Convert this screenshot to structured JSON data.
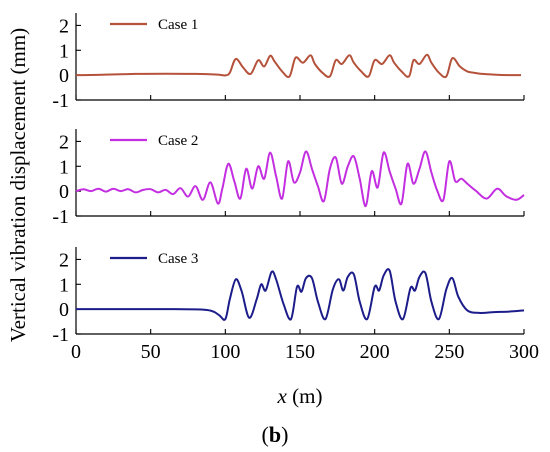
{
  "figure_label": "(b)",
  "figure_label_parts": {
    "open": "(",
    "letter": "b",
    "close": ")"
  },
  "chart_data": {
    "type": "line",
    "ylabel": "Vertical vibration displacement (mm)",
    "xlabel": "x (m)",
    "xlabel_parts": {
      "var": "x",
      "unit": " (m)"
    },
    "xlim": [
      0,
      300
    ],
    "xticks": [
      0,
      50,
      100,
      150,
      200,
      250,
      300
    ],
    "ylim": [
      -1,
      2.5
    ],
    "yticks": [
      -1,
      0,
      1,
      2
    ],
    "grid": false,
    "panels": [
      {
        "series": [
          {
            "name": "Case 1",
            "color": "#b5523b",
            "x": [
              0,
              20,
              40,
              60,
              80,
              95,
              100,
              103,
              107,
              112,
              117,
              122,
              126,
              130,
              133,
              138,
              143,
              147,
              152,
              157,
              160,
              165,
              170,
              174,
              178,
              183,
              186,
              191,
              196,
              200,
              205,
              210,
              213,
              218,
              223,
              226,
              230,
              235,
              238,
              243,
              248,
              252,
              257,
              262,
              266,
              272,
              280,
              290,
              298
            ],
            "y": [
              0.0,
              0.02,
              0.05,
              0.06,
              0.05,
              0.02,
              -0.01,
              0.1,
              0.65,
              0.3,
              0.05,
              0.6,
              0.35,
              0.78,
              0.55,
              0.15,
              -0.05,
              0.7,
              0.5,
              0.8,
              0.45,
              0.1,
              -0.05,
              0.6,
              0.45,
              0.8,
              0.5,
              0.15,
              -0.05,
              0.6,
              0.45,
              0.8,
              0.5,
              0.15,
              -0.05,
              0.6,
              0.45,
              0.82,
              0.5,
              0.1,
              -0.05,
              0.68,
              0.35,
              0.15,
              0.1,
              0.05,
              0.02,
              0.0,
              0.0
            ]
          }
        ]
      },
      {
        "series": [
          {
            "name": "Case 2",
            "color": "#c32fe0",
            "x": [
              0,
              5,
              10,
              15,
              20,
              25,
              30,
              35,
              40,
              45,
              50,
              55,
              60,
              65,
              70,
              75,
              80,
              85,
              90,
              95,
              98,
              102,
              106,
              110,
              114,
              118,
              122,
              126,
              130,
              134,
              138,
              142,
              146,
              150,
              154,
              158,
              162,
              166,
              170,
              174,
              178,
              182,
              186,
              190,
              194,
              198,
              202,
              206,
              210,
              214,
              218,
              222,
              226,
              230,
              234,
              238,
              242,
              246,
              250,
              254,
              258,
              262,
              268,
              275,
              282,
              288,
              295,
              300
            ],
            "y": [
              0.0,
              0.08,
              0.0,
              0.1,
              -0.02,
              0.1,
              0.0,
              0.08,
              -0.05,
              0.05,
              0.08,
              -0.05,
              0.05,
              -0.12,
              0.12,
              -0.22,
              0.2,
              -0.35,
              0.35,
              -0.5,
              0.1,
              1.1,
              0.4,
              -0.3,
              0.9,
              0.1,
              1.0,
              0.5,
              1.55,
              0.6,
              -0.3,
              1.2,
              0.35,
              0.75,
              1.6,
              0.9,
              0.2,
              -0.4,
              0.9,
              1.35,
              0.3,
              1.0,
              1.4,
              0.5,
              -0.6,
              0.8,
              0.15,
              1.55,
              0.8,
              0.1,
              -0.5,
              1.1,
              0.3,
              0.9,
              1.6,
              0.75,
              0.0,
              -0.35,
              1.2,
              0.4,
              0.5,
              0.3,
              0.0,
              -0.3,
              0.1,
              -0.2,
              -0.35,
              -0.15
            ]
          }
        ]
      },
      {
        "series": [
          {
            "name": "Case 3",
            "color": "#1c1c8a",
            "x": [
              0,
              30,
              60,
              85,
              92,
              96,
              100,
              103,
              107,
              111,
              116,
              121,
              124,
              127,
              131,
              134,
              139,
              144,
              148,
              151,
              154,
              158,
              162,
              167,
              172,
              176,
              179,
              182,
              186,
              190,
              195,
              200,
              203,
              206,
              210,
              214,
              219,
              224,
              227,
              230,
              234,
              238,
              243,
              248,
              252,
              256,
              262,
              270,
              280,
              290,
              300
            ],
            "y": [
              0.0,
              0.0,
              0.0,
              -0.02,
              -0.1,
              -0.25,
              -0.4,
              0.4,
              1.2,
              0.7,
              -0.35,
              0.4,
              1.0,
              0.75,
              1.5,
              1.2,
              0.2,
              -0.4,
              0.9,
              0.7,
              1.25,
              1.25,
              0.3,
              -0.4,
              0.8,
              1.2,
              0.75,
              1.3,
              1.4,
              0.3,
              -0.4,
              0.9,
              0.75,
              1.35,
              1.55,
              0.3,
              -0.4,
              0.85,
              0.75,
              1.3,
              1.45,
              0.3,
              -0.4,
              0.8,
              1.25,
              0.5,
              -0.05,
              -0.15,
              -0.12,
              -0.1,
              -0.05
            ]
          }
        ]
      }
    ]
  }
}
